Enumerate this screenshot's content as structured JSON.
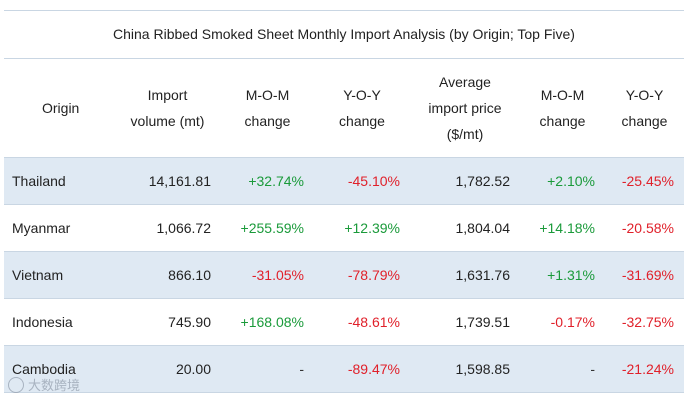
{
  "title": "China Ribbed Smoked Sheet Monthly Import Analysis (by Origin; Top Five)",
  "headers": {
    "origin": "Origin",
    "import_volume": [
      "Import",
      "volume (mt)"
    ],
    "mom_1": [
      "M-O-M",
      "change"
    ],
    "yoy_1": [
      "Y-O-Y",
      "change"
    ],
    "avg_price": [
      "Average",
      "import price",
      "($/mt)"
    ],
    "mom_2": [
      "M-O-M",
      "change"
    ],
    "yoy_2": [
      "Y-O-Y",
      "change"
    ]
  },
  "rows": [
    {
      "origin": "Thailand",
      "volume": "14,161.81",
      "mom_vol": "+32.74%",
      "yoy_vol": "-45.10%",
      "price": "1,782.52",
      "mom_price": "+2.10%",
      "yoy_price": "-25.45%"
    },
    {
      "origin": "Myanmar",
      "volume": "1,066.72",
      "mom_vol": "+255.59%",
      "yoy_vol": "+12.39%",
      "price": "1,804.04",
      "mom_price": "+14.18%",
      "yoy_price": "-20.58%"
    },
    {
      "origin": "Vietnam",
      "volume": "866.10",
      "mom_vol": "-31.05%",
      "yoy_vol": "-78.79%",
      "price": "1,631.76",
      "mom_price": "+1.31%",
      "yoy_price": "-31.69%"
    },
    {
      "origin": "Indonesia",
      "volume": "745.90",
      "mom_vol": "+168.08%",
      "yoy_vol": "-48.61%",
      "price": "1,739.51",
      "mom_price": "-0.17%",
      "yoy_price": "-32.75%"
    },
    {
      "origin": "Cambodia",
      "volume": "20.00",
      "mom_vol": "-",
      "yoy_vol": "-89.47%",
      "price": "1,598.85",
      "mom_price": "-",
      "yoy_price": "-21.24%"
    }
  ],
  "watermark": {
    "text": "大数跨境",
    "icon": "logo-icon"
  },
  "colors": {
    "positive": "#1a9a3a",
    "negative": "#e0202a",
    "row_shade": "#dfe9f3",
    "rule": "#c9d6e3"
  }
}
